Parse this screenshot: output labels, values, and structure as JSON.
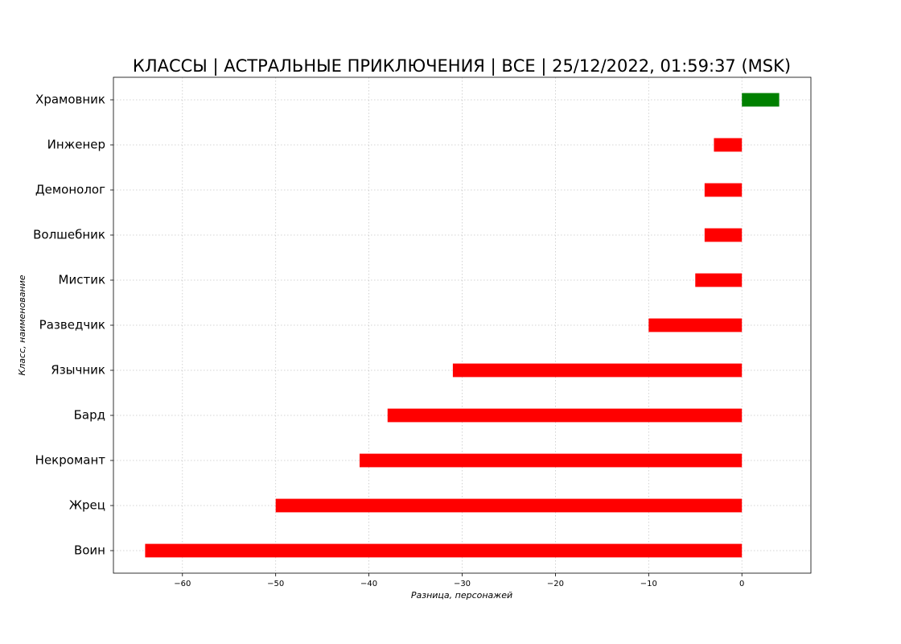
{
  "chart_data": {
    "type": "barh",
    "title": "КЛАССЫ | АСТРАЛЬНЫЕ ПРИКЛЮЧЕНИЯ | ВСЕ | 25/12/2022, 01:59:37 (MSK)",
    "x_label": "Разница, персонажей",
    "y_label": "Класс, наименование",
    "categories": [
      "Храмовник",
      "Инженер",
      "Демонолог",
      "Волшебник",
      "Мистик",
      "Разведчик",
      "Язычник",
      "Бард",
      "Некромант",
      "Жрец",
      "Воин"
    ],
    "values": [
      4,
      -3,
      -4,
      -4,
      -5,
      -10,
      -31,
      -38,
      -41,
      -50,
      -64
    ],
    "colors": [
      "#008000",
      "#ff0000",
      "#ff0000",
      "#ff0000",
      "#ff0000",
      "#ff0000",
      "#ff0000",
      "#ff0000",
      "#ff0000",
      "#ff0000",
      "#ff0000"
    ],
    "xlim": [
      -67.4,
      7.4
    ],
    "xticks": [
      {
        "value": -60,
        "label": "−60"
      },
      {
        "value": -50,
        "label": "−50"
      },
      {
        "value": -40,
        "label": "−40"
      },
      {
        "value": -30,
        "label": "−30"
      },
      {
        "value": -20,
        "label": "−20"
      },
      {
        "value": -10,
        "label": "−10"
      },
      0
    ],
    "grid": true
  }
}
